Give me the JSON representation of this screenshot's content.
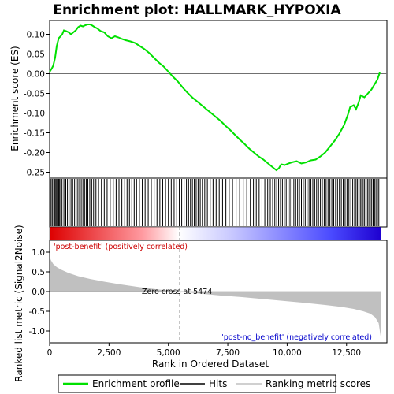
{
  "chart_data": {
    "type": "line",
    "title": "Enrichment plot: HALLMARK_HYPOXIA",
    "es_panel": {
      "ylabel": "Enrichment score (ES)",
      "ylim": [
        -0.265,
        0.135
      ],
      "yticks": [
        0.1,
        0.05,
        0.0,
        -0.05,
        -0.1,
        -0.15,
        -0.2,
        -0.25
      ],
      "ytick_labels": [
        "0.10",
        "0.05",
        "0.00",
        "-0.05",
        "-0.10",
        "-0.15",
        "-0.20",
        "-0.25"
      ],
      "series": [
        {
          "name": "Enrichment profile",
          "color": "#00e000",
          "x": [
            0,
            80,
            150,
            230,
            300,
            380,
            460,
            530,
            600,
            700,
            800,
            900,
            1000,
            1100,
            1200,
            1300,
            1400,
            1500,
            1600,
            1700,
            1800,
            1900,
            2000,
            2150,
            2300,
            2450,
            2600,
            2750,
            2900,
            3050,
            3200,
            3400,
            3600,
            3800,
            4000,
            4200,
            4400,
            4600,
            4800,
            5000,
            5200,
            5400,
            5600,
            5800,
            6000,
            6200,
            6400,
            6600,
            6800,
            7000,
            7200,
            7400,
            7600,
            7800,
            8000,
            8200,
            8400,
            8600,
            8800,
            9000,
            9200,
            9400,
            9550,
            9650,
            9750,
            9900,
            10050,
            10200,
            10400,
            10600,
            10800,
            11000,
            11200,
            11400,
            11600,
            11800,
            12000,
            12200,
            12400,
            12550,
            12650,
            12800,
            12900,
            13000,
            13100,
            13250,
            13400,
            13550,
            13700,
            13800,
            13900
          ],
          "y": [
            0.005,
            0.012,
            0.02,
            0.04,
            0.07,
            0.09,
            0.095,
            0.1,
            0.11,
            0.108,
            0.105,
            0.1,
            0.105,
            0.11,
            0.118,
            0.122,
            0.12,
            0.123,
            0.125,
            0.125,
            0.122,
            0.118,
            0.115,
            0.108,
            0.105,
            0.095,
            0.09,
            0.095,
            0.092,
            0.088,
            0.085,
            0.082,
            0.078,
            0.07,
            0.062,
            0.052,
            0.04,
            0.028,
            0.018,
            0.005,
            -0.008,
            -0.02,
            -0.035,
            -0.048,
            -0.06,
            -0.07,
            -0.08,
            -0.09,
            -0.1,
            -0.11,
            -0.12,
            -0.132,
            -0.143,
            -0.155,
            -0.167,
            -0.178,
            -0.19,
            -0.2,
            -0.21,
            -0.218,
            -0.228,
            -0.238,
            -0.245,
            -0.24,
            -0.23,
            -0.232,
            -0.228,
            -0.225,
            -0.222,
            -0.228,
            -0.225,
            -0.22,
            -0.218,
            -0.21,
            -0.2,
            -0.185,
            -0.17,
            -0.152,
            -0.13,
            -0.105,
            -0.085,
            -0.08,
            -0.09,
            -0.075,
            -0.055,
            -0.06,
            -0.05,
            -0.04,
            -0.025,
            -0.015,
            0.003
          ]
        }
      ]
    },
    "hits": {
      "label": "Hits",
      "positions": [
        20,
        60,
        110,
        170,
        220,
        260,
        300,
        340,
        380,
        420,
        470,
        520,
        600,
        680,
        750,
        820,
        900,
        970,
        1050,
        1120,
        1190,
        1260,
        1330,
        1400,
        1470,
        1540,
        1610,
        1690,
        1770,
        1850,
        1950,
        2060,
        2180,
        2300,
        2420,
        2550,
        2680,
        2800,
        2920,
        3040,
        3160,
        3260,
        3360,
        3460,
        3560,
        3660,
        3780,
        3900,
        4020,
        4150,
        4280,
        4400,
        4520,
        4640,
        4760,
        4880,
        5000,
        5120,
        5240,
        5350,
        5460,
        5560,
        5660,
        5760,
        5850,
        5930,
        6010,
        6090,
        6170,
        6250,
        6340,
        6430,
        6530,
        6640,
        6760,
        6880,
        7010,
        7140,
        7280,
        7420,
        7560,
        7700,
        7850,
        8000,
        8150,
        8300,
        8450,
        8580,
        8700,
        8820,
        8940,
        9060,
        9180,
        9290,
        9390,
        9480,
        9560,
        9640,
        9720,
        9800,
        9880,
        9960,
        10040,
        10120,
        10200,
        10280,
        10360,
        10440,
        10520,
        10600,
        10680,
        10760,
        10840,
        10920,
        11000,
        11080,
        11160,
        11240,
        11320,
        11400,
        11480,
        11560,
        11640,
        11720,
        11800,
        11880,
        11960,
        12040,
        12120,
        12200,
        12280,
        12360,
        12440,
        12520,
        12600,
        12680,
        12760,
        12840,
        12900,
        12960,
        13020,
        13080,
        13140,
        13200,
        13260,
        13320,
        13380,
        13440,
        13500,
        13560,
        13620,
        13680,
        13740,
        13800,
        13860
      ]
    },
    "metric_panel": {
      "ylabel": "Ranked list metric (Signal2Noise)",
      "ylim": [
        -1.3,
        1.3
      ],
      "yticks": [
        1.0,
        0.5,
        0.0,
        -0.5,
        -1.0
      ],
      "ytick_labels": [
        "1.0",
        "0.5",
        "0.0",
        "-0.5",
        "-1.0"
      ],
      "x": [
        0,
        50,
        150,
        300,
        500,
        800,
        1200,
        1700,
        2300,
        3000,
        3800,
        4600,
        5474,
        6300,
        7200,
        8100,
        9000,
        9900,
        10800,
        11600,
        12300,
        12800,
        13200,
        13500,
        13700,
        13850,
        13950
      ],
      "values": [
        0.9,
        0.8,
        0.7,
        0.62,
        0.55,
        0.47,
        0.39,
        0.32,
        0.25,
        0.18,
        0.11,
        0.05,
        0.0,
        -0.05,
        -0.1,
        -0.14,
        -0.19,
        -0.24,
        -0.29,
        -0.34,
        -0.39,
        -0.44,
        -0.5,
        -0.56,
        -0.65,
        -0.8,
        -1.2
      ],
      "fill_color": "#c0c0c0",
      "zero_cross_label": "Zero cross at 5474",
      "zero_cross": 5474,
      "pos_label": "'post-benefit' (positively correlated)",
      "pos_color": "#cc0000",
      "neg_label": "'post-no_benefit' (negatively correlated)",
      "neg_color": "#0000cc"
    },
    "x_axis": {
      "xlabel": "Rank in Ordered Dataset",
      "xlim": [
        0,
        14200
      ],
      "xticks": [
        0,
        2500,
        5000,
        7500,
        10000,
        12500
      ],
      "xtick_labels": [
        "0",
        "2,500",
        "5,000",
        "7,500",
        "10,000",
        "12,500"
      ],
      "n_genes": 13950
    },
    "legend": {
      "placement": "bottom",
      "entries": [
        {
          "label": "Enrichment profile",
          "color": "#00e000"
        },
        {
          "label": "Hits",
          "color": "#000000"
        },
        {
          "label": "Ranking metric scores",
          "color": "#c0c0c0"
        }
      ]
    }
  }
}
